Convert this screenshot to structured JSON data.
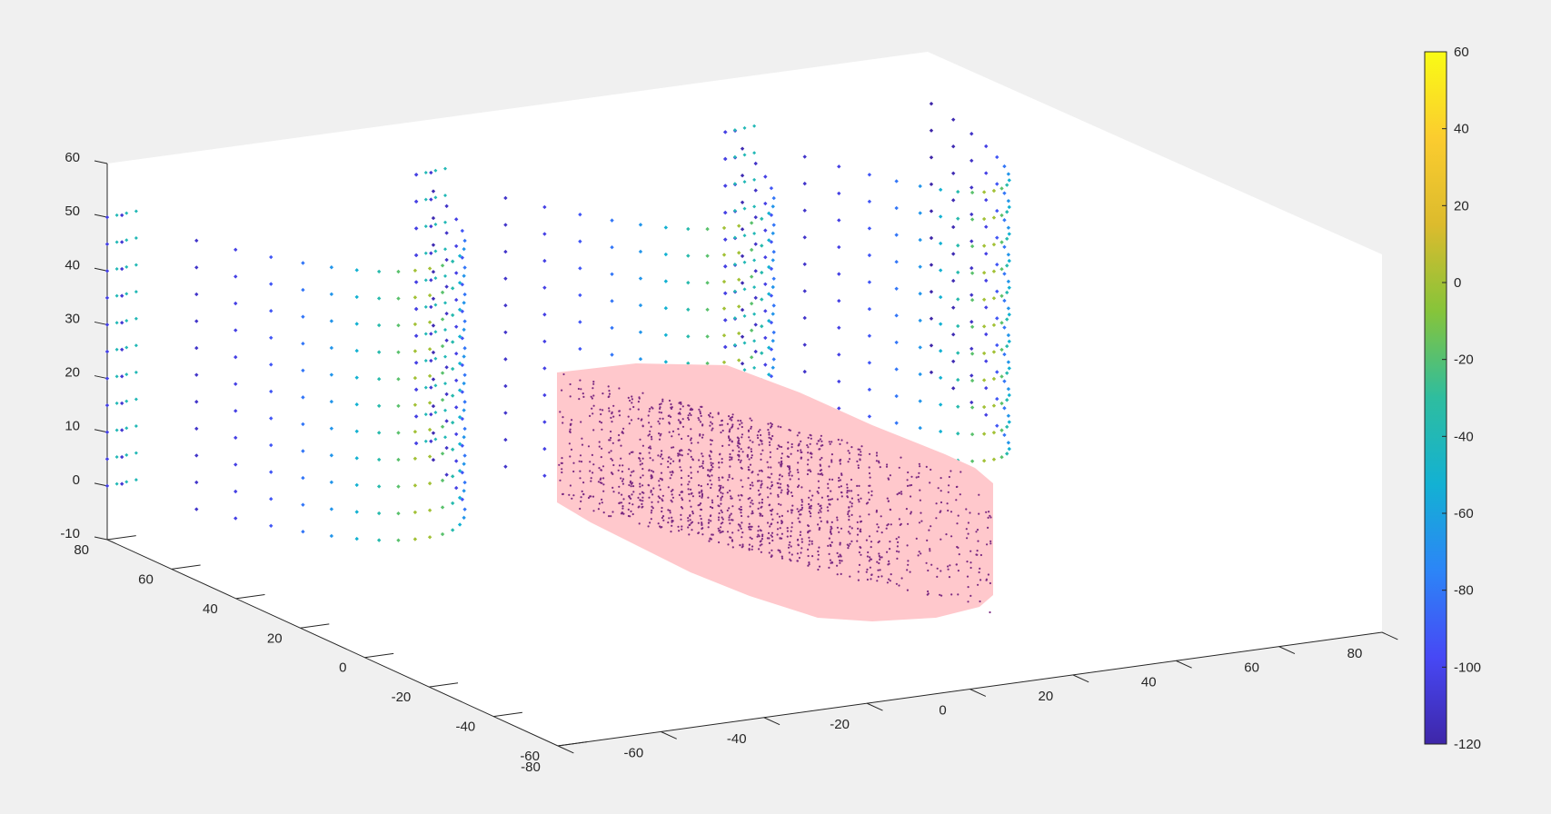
{
  "chart_data": {
    "type": "scatter3d",
    "title": "",
    "xlabel": "",
    "ylabel": "",
    "zlabel": "",
    "xlim": [
      -80,
      80
    ],
    "ylim": [
      -60,
      80
    ],
    "zlim": [
      -10,
      60
    ],
    "x_ticks": [
      "-80",
      "-60",
      "-40",
      "-20",
      "0",
      "20",
      "40",
      "60",
      "80"
    ],
    "y_ticks": [
      "-60",
      "-40",
      "-20",
      "0",
      "20",
      "40",
      "60",
      "80"
    ],
    "z_ticks": [
      "-10",
      "0",
      "10",
      "20",
      "30",
      "40",
      "50",
      "60"
    ],
    "x_tick_values": [
      -80,
      -60,
      -40,
      -20,
      0,
      20,
      40,
      60,
      80
    ],
    "y_tick_values": [
      -60,
      -40,
      -20,
      0,
      20,
      40,
      60,
      80
    ],
    "z_tick_values": [
      -10,
      0,
      10,
      20,
      30,
      40,
      50,
      60
    ],
    "grid": false,
    "background": "#ffffff",
    "colormap": "parula",
    "colormap_stops": [
      "#3e26a8",
      "#4748f5",
      "#2c85f7",
      "#13b1d3",
      "#2ebd9f",
      "#86c43a",
      "#dcbb2d",
      "#fbcc2f",
      "#f9fb15"
    ],
    "colorbar": {
      "location": "right",
      "range": [
        -120,
        60
      ],
      "ticks": [
        "-120",
        "-100",
        "-80",
        "-60",
        "-40",
        "-20",
        "0",
        "20",
        "40",
        "60"
      ],
      "tick_values": [
        -120,
        -100,
        -80,
        -60,
        -40,
        -20,
        0,
        20,
        40,
        60
      ]
    },
    "series": [
      {
        "kind": "curved-wall",
        "marker": "diamond",
        "color_by": "colorbar",
        "walls": [
          {
            "x_start": -80,
            "x_end": -20,
            "y_edge": 80,
            "y_mid": 30
          },
          {
            "x_start": -20,
            "x_end": 40,
            "y_edge": 80,
            "y_mid": 30
          },
          {
            "x_start": 40,
            "x_end": 80,
            "y_edge": 80,
            "y_mid": 30
          }
        ],
        "z_levels": [
          0,
          5,
          10,
          15,
          20,
          25,
          30,
          35,
          40,
          45,
          50
        ],
        "points_per_row": 22
      },
      {
        "kind": "cylinder-point-cloud",
        "marker": "point",
        "color": "#7b2a82",
        "fill": "#ffc8cc",
        "x_range": [
          -40,
          30
        ],
        "y_range": [
          -60,
          0
        ],
        "z_range": [
          -10,
          20
        ]
      }
    ]
  }
}
